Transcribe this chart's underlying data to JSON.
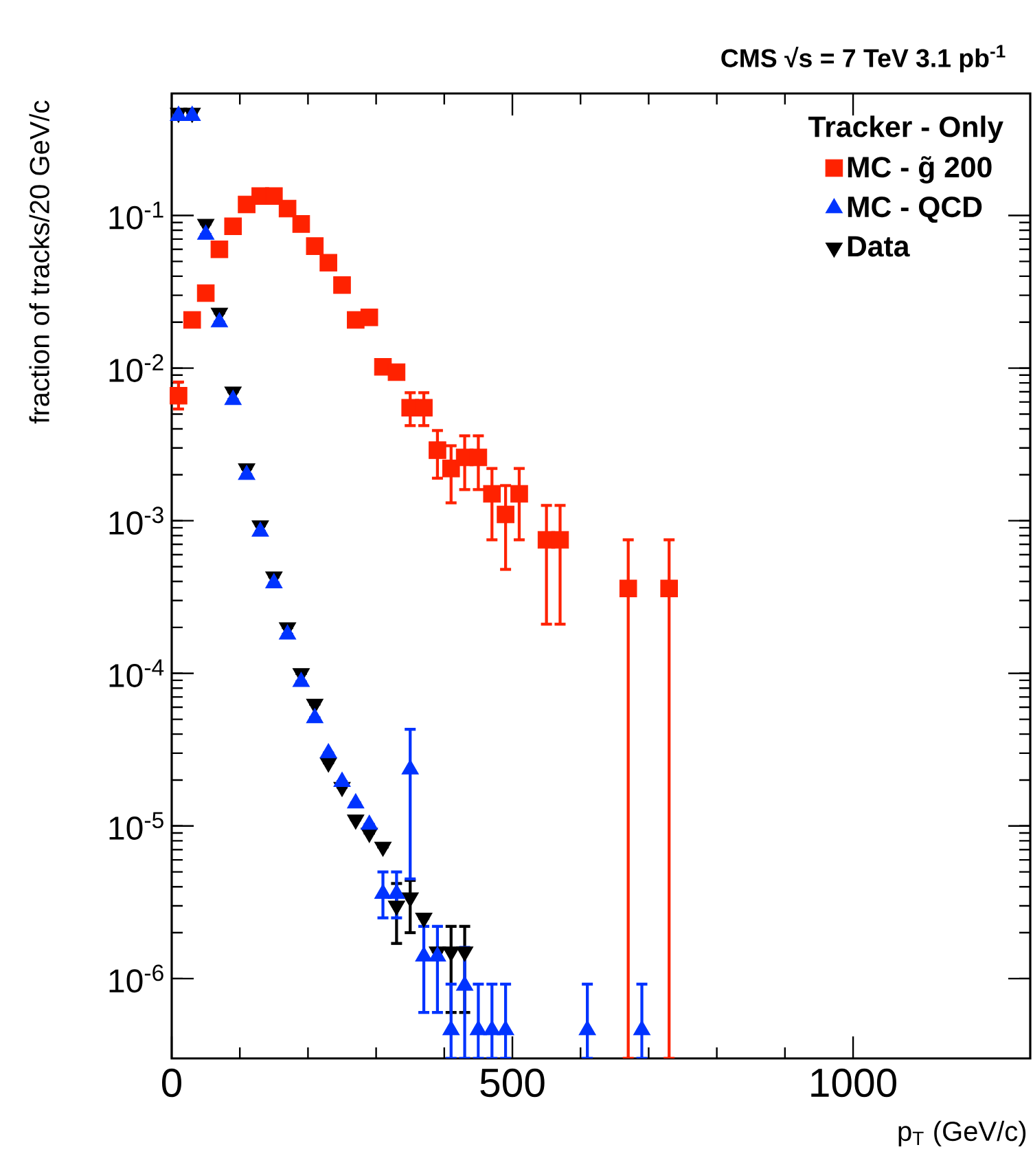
{
  "chart_data": {
    "type": "scatter",
    "title": "CMS  √s = 7 TeV    3.1 pb$^{-1}$",
    "xlabel": "p$_{T}$ (GeV/c)",
    "ylabel": "fraction of tracks/20 GeV/c",
    "legend_title": "Tracker - Only",
    "legend": "top right",
    "log": "y",
    "grid": false,
    "xlim": [
      0,
      1260
    ],
    "xticks": [
      0,
      500,
      1000
    ],
    "ylim": [
      3e-07,
      0.63
    ],
    "yticks": [
      {
        "value": 1e-06,
        "label": "10$^{-6}$"
      },
      {
        "value": 1e-05,
        "label": "10$^{-5}$"
      },
      {
        "value": 0.0001,
        "label": "10$^{-4}$"
      },
      {
        "value": 0.001,
        "label": "10$^{-3}$"
      },
      {
        "value": 0.01,
        "label": "10$^{-2}$"
      },
      {
        "value": 0.1,
        "label": "10$^{-1}$"
      }
    ],
    "series": [
      {
        "name": "MC - g̃ 200",
        "color": "#ff2200",
        "marker": "square",
        "x": [
          10,
          30,
          50,
          70,
          90,
          110,
          130,
          150,
          170,
          190,
          210,
          230,
          250,
          270,
          290,
          310,
          330,
          350,
          370,
          390,
          410,
          430,
          450,
          470,
          490,
          510,
          550,
          570,
          670,
          730
        ],
        "values": [
          0.0066,
          0.0207,
          0.031,
          0.06,
          0.085,
          0.118,
          0.134,
          0.134,
          0.111,
          0.088,
          0.063,
          0.049,
          0.035,
          0.0207,
          0.0215,
          0.0102,
          0.0094,
          0.0055,
          0.0055,
          0.0029,
          0.0022,
          0.0026,
          0.0026,
          0.0015,
          0.0011,
          0.0015,
          0.00075,
          0.00075,
          0.00036,
          0.00036
        ],
        "errors": [
          [
            0.0054,
            0.0081
          ],
          null,
          null,
          null,
          null,
          null,
          null,
          null,
          null,
          null,
          null,
          null,
          null,
          null,
          null,
          null,
          null,
          [
            0.0042,
            0.0069
          ],
          [
            0.0042,
            0.0069
          ],
          [
            0.0019,
            0.0039
          ],
          [
            0.00131,
            0.0031
          ],
          [
            0.0016,
            0.0036
          ],
          [
            0.0016,
            0.0036
          ],
          [
            0.00075,
            0.0022
          ],
          [
            0.00048,
            0.0017
          ],
          [
            0.00075,
            0.0022
          ],
          [
            0.00021,
            0.00126
          ],
          [
            0.00021,
            0.00126
          ],
          [
            3e-07,
            0.00075
          ],
          [
            3e-07,
            0.00075
          ]
        ]
      },
      {
        "name": "MC - QCD",
        "color": "#0033ff",
        "marker": "triangle",
        "x": [
          10,
          30,
          50,
          70,
          90,
          110,
          130,
          150,
          170,
          190,
          210,
          230,
          250,
          270,
          290,
          310,
          330,
          350,
          370,
          390,
          410,
          430,
          450,
          470,
          490,
          610,
          690
        ],
        "values": [
          0.45,
          0.45,
          0.075,
          0.02,
          0.0062,
          0.002,
          0.00085,
          0.00039,
          0.00018,
          8.8e-05,
          5.1e-05,
          3e-05,
          1.95e-05,
          1.41e-05,
          1.02e-05,
          3.6e-06,
          3.6e-06,
          2.35e-05,
          1.4e-06,
          1.4e-06,
          4.6e-07,
          9e-07,
          4.6e-07,
          4.6e-07,
          4.6e-07,
          4.6e-07,
          4.6e-07
        ],
        "errors": [
          null,
          null,
          null,
          null,
          null,
          null,
          null,
          null,
          null,
          null,
          null,
          null,
          null,
          null,
          null,
          [
            2.5e-06,
            5e-06
          ],
          [
            2.5e-06,
            5e-06
          ],
          [
            4.5e-06,
            4.3e-05
          ],
          [
            6e-07,
            2.2e-06
          ],
          [
            6e-07,
            2.2e-06
          ],
          [
            3e-07,
            9.2e-07
          ],
          [
            3e-07,
            1.6e-06
          ],
          [
            3e-07,
            9.2e-07
          ],
          [
            3e-07,
            9.2e-07
          ],
          [
            3e-07,
            9.2e-07
          ],
          [
            3e-07,
            9.2e-07
          ],
          [
            3e-07,
            9.2e-07
          ]
        ]
      },
      {
        "name": "Data",
        "color": "#000000",
        "marker": "triangle-down",
        "x": [
          10,
          30,
          50,
          70,
          90,
          110,
          130,
          150,
          170,
          190,
          210,
          230,
          250,
          270,
          290,
          310,
          330,
          350,
          370,
          390,
          410,
          430
        ],
        "values": [
          0.47,
          0.47,
          0.088,
          0.023,
          0.007,
          0.0022,
          0.00093,
          0.00043,
          0.0002,
          0.0001,
          6.3e-05,
          2.6e-05,
          1.8e-05,
          1.1e-05,
          9e-06,
          7.3e-06,
          3e-06,
          3.4e-06,
          2.5e-06,
          1.5e-06,
          1.5e-06,
          1.5e-06
        ],
        "errors": [
          null,
          null,
          null,
          null,
          null,
          null,
          null,
          null,
          null,
          null,
          null,
          null,
          null,
          null,
          null,
          null,
          [
            1.7e-06,
            4.2e-06
          ],
          [
            2e-06,
            4.4e-06
          ],
          null,
          null,
          [
            6e-07,
            2.2e-06
          ],
          [
            6e-07,
            2.2e-06
          ]
        ]
      }
    ]
  }
}
